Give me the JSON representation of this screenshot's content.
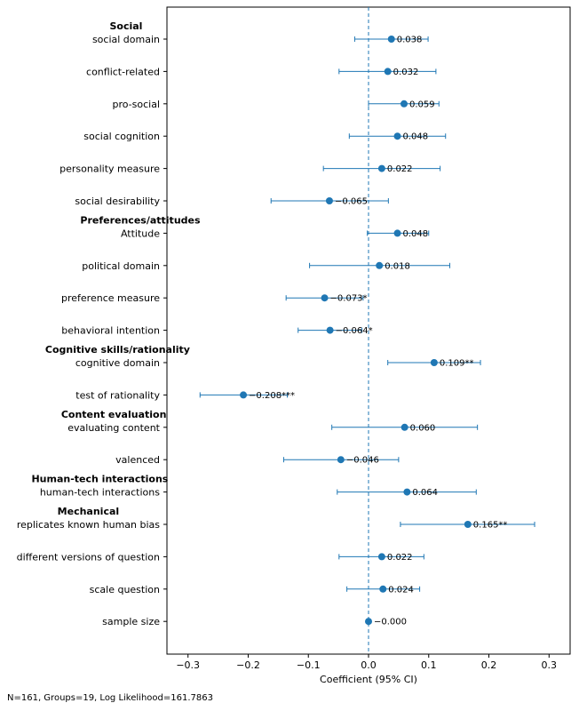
{
  "chart_data": {
    "type": "forest",
    "xlabel": "Coefficient (95% CI)",
    "xlim": [
      -0.335,
      0.335
    ],
    "xticks": [
      -0.3,
      -0.2,
      -0.1,
      0.0,
      0.1,
      0.2,
      0.3
    ],
    "xtick_labels": [
      "−0.3",
      "−0.2",
      "−0.1",
      "0.0",
      "0.1",
      "0.2",
      "0.3"
    ],
    "reference_line": 0,
    "colors": {
      "point": "#1f77b4",
      "ci": "#1f77b4",
      "ref": "#1f77b4"
    },
    "rows": [
      {
        "label": "social domain",
        "group": "Social",
        "coef": 0.038,
        "lo": -0.023,
        "hi": 0.099,
        "text": "0.038"
      },
      {
        "label": "conflict-related",
        "group": "",
        "coef": 0.032,
        "lo": -0.049,
        "hi": 0.112,
        "text": "0.032"
      },
      {
        "label": "pro-social",
        "group": "",
        "coef": 0.059,
        "lo": 0.0,
        "hi": 0.117,
        "text": "0.059"
      },
      {
        "label": "social cognition",
        "group": "",
        "coef": 0.048,
        "lo": -0.032,
        "hi": 0.128,
        "text": "0.048"
      },
      {
        "label": "personality measure",
        "group": "",
        "coef": 0.022,
        "lo": -0.075,
        "hi": 0.119,
        "text": "0.022"
      },
      {
        "label": "social desirability",
        "group": "",
        "coef": -0.065,
        "lo": -0.162,
        "hi": 0.033,
        "text": "−0.065"
      },
      {
        "label": "Attitude",
        "group": "Preferences/attitudes",
        "coef": 0.048,
        "lo": -0.002,
        "hi": 0.1,
        "text": "0.048"
      },
      {
        "label": "political domain",
        "group": "",
        "coef": 0.018,
        "lo": -0.098,
        "hi": 0.135,
        "text": "0.018"
      },
      {
        "label": "preference measure",
        "group": "",
        "coef": -0.073,
        "lo": -0.137,
        "hi": -0.009,
        "text": "−0.073*"
      },
      {
        "label": "behavioral intention",
        "group": "",
        "coef": -0.064,
        "lo": -0.117,
        "hi": -0.011,
        "text": "−0.064*"
      },
      {
        "label": "cognitive domain",
        "group": "Cognitive skills/rationality",
        "coef": 0.109,
        "lo": 0.032,
        "hi": 0.186,
        "text": "0.109**"
      },
      {
        "label": "test of rationality",
        "group": "",
        "coef": -0.208,
        "lo": -0.28,
        "hi": -0.135,
        "text": "−0.208***"
      },
      {
        "label": "evaluating content",
        "group": "Content evaluation",
        "coef": 0.06,
        "lo": -0.061,
        "hi": 0.181,
        "text": "0.060"
      },
      {
        "label": "valenced",
        "group": "",
        "coef": -0.046,
        "lo": -0.141,
        "hi": 0.05,
        "text": "−0.046"
      },
      {
        "label": "human-tech interactions",
        "group": "Human-tech interactions",
        "coef": 0.064,
        "lo": -0.052,
        "hi": 0.179,
        "text": "0.064"
      },
      {
        "label": "replicates known human bias",
        "group": "Mechanical",
        "coef": 0.165,
        "lo": 0.053,
        "hi": 0.276,
        "text": "0.165**"
      },
      {
        "label": "different versions of question",
        "group": "",
        "coef": 0.022,
        "lo": -0.049,
        "hi": 0.092,
        "text": "0.022"
      },
      {
        "label": "scale question",
        "group": "",
        "coef": 0.024,
        "lo": -0.036,
        "hi": 0.085,
        "text": "0.024"
      },
      {
        "label": "sample size",
        "group": "",
        "coef": 0.0,
        "lo": -0.001,
        "hi": 0.001,
        "text": "−0.000"
      }
    ]
  },
  "footnote": "N=161, Groups=19, Log Likelihood=161.7863"
}
